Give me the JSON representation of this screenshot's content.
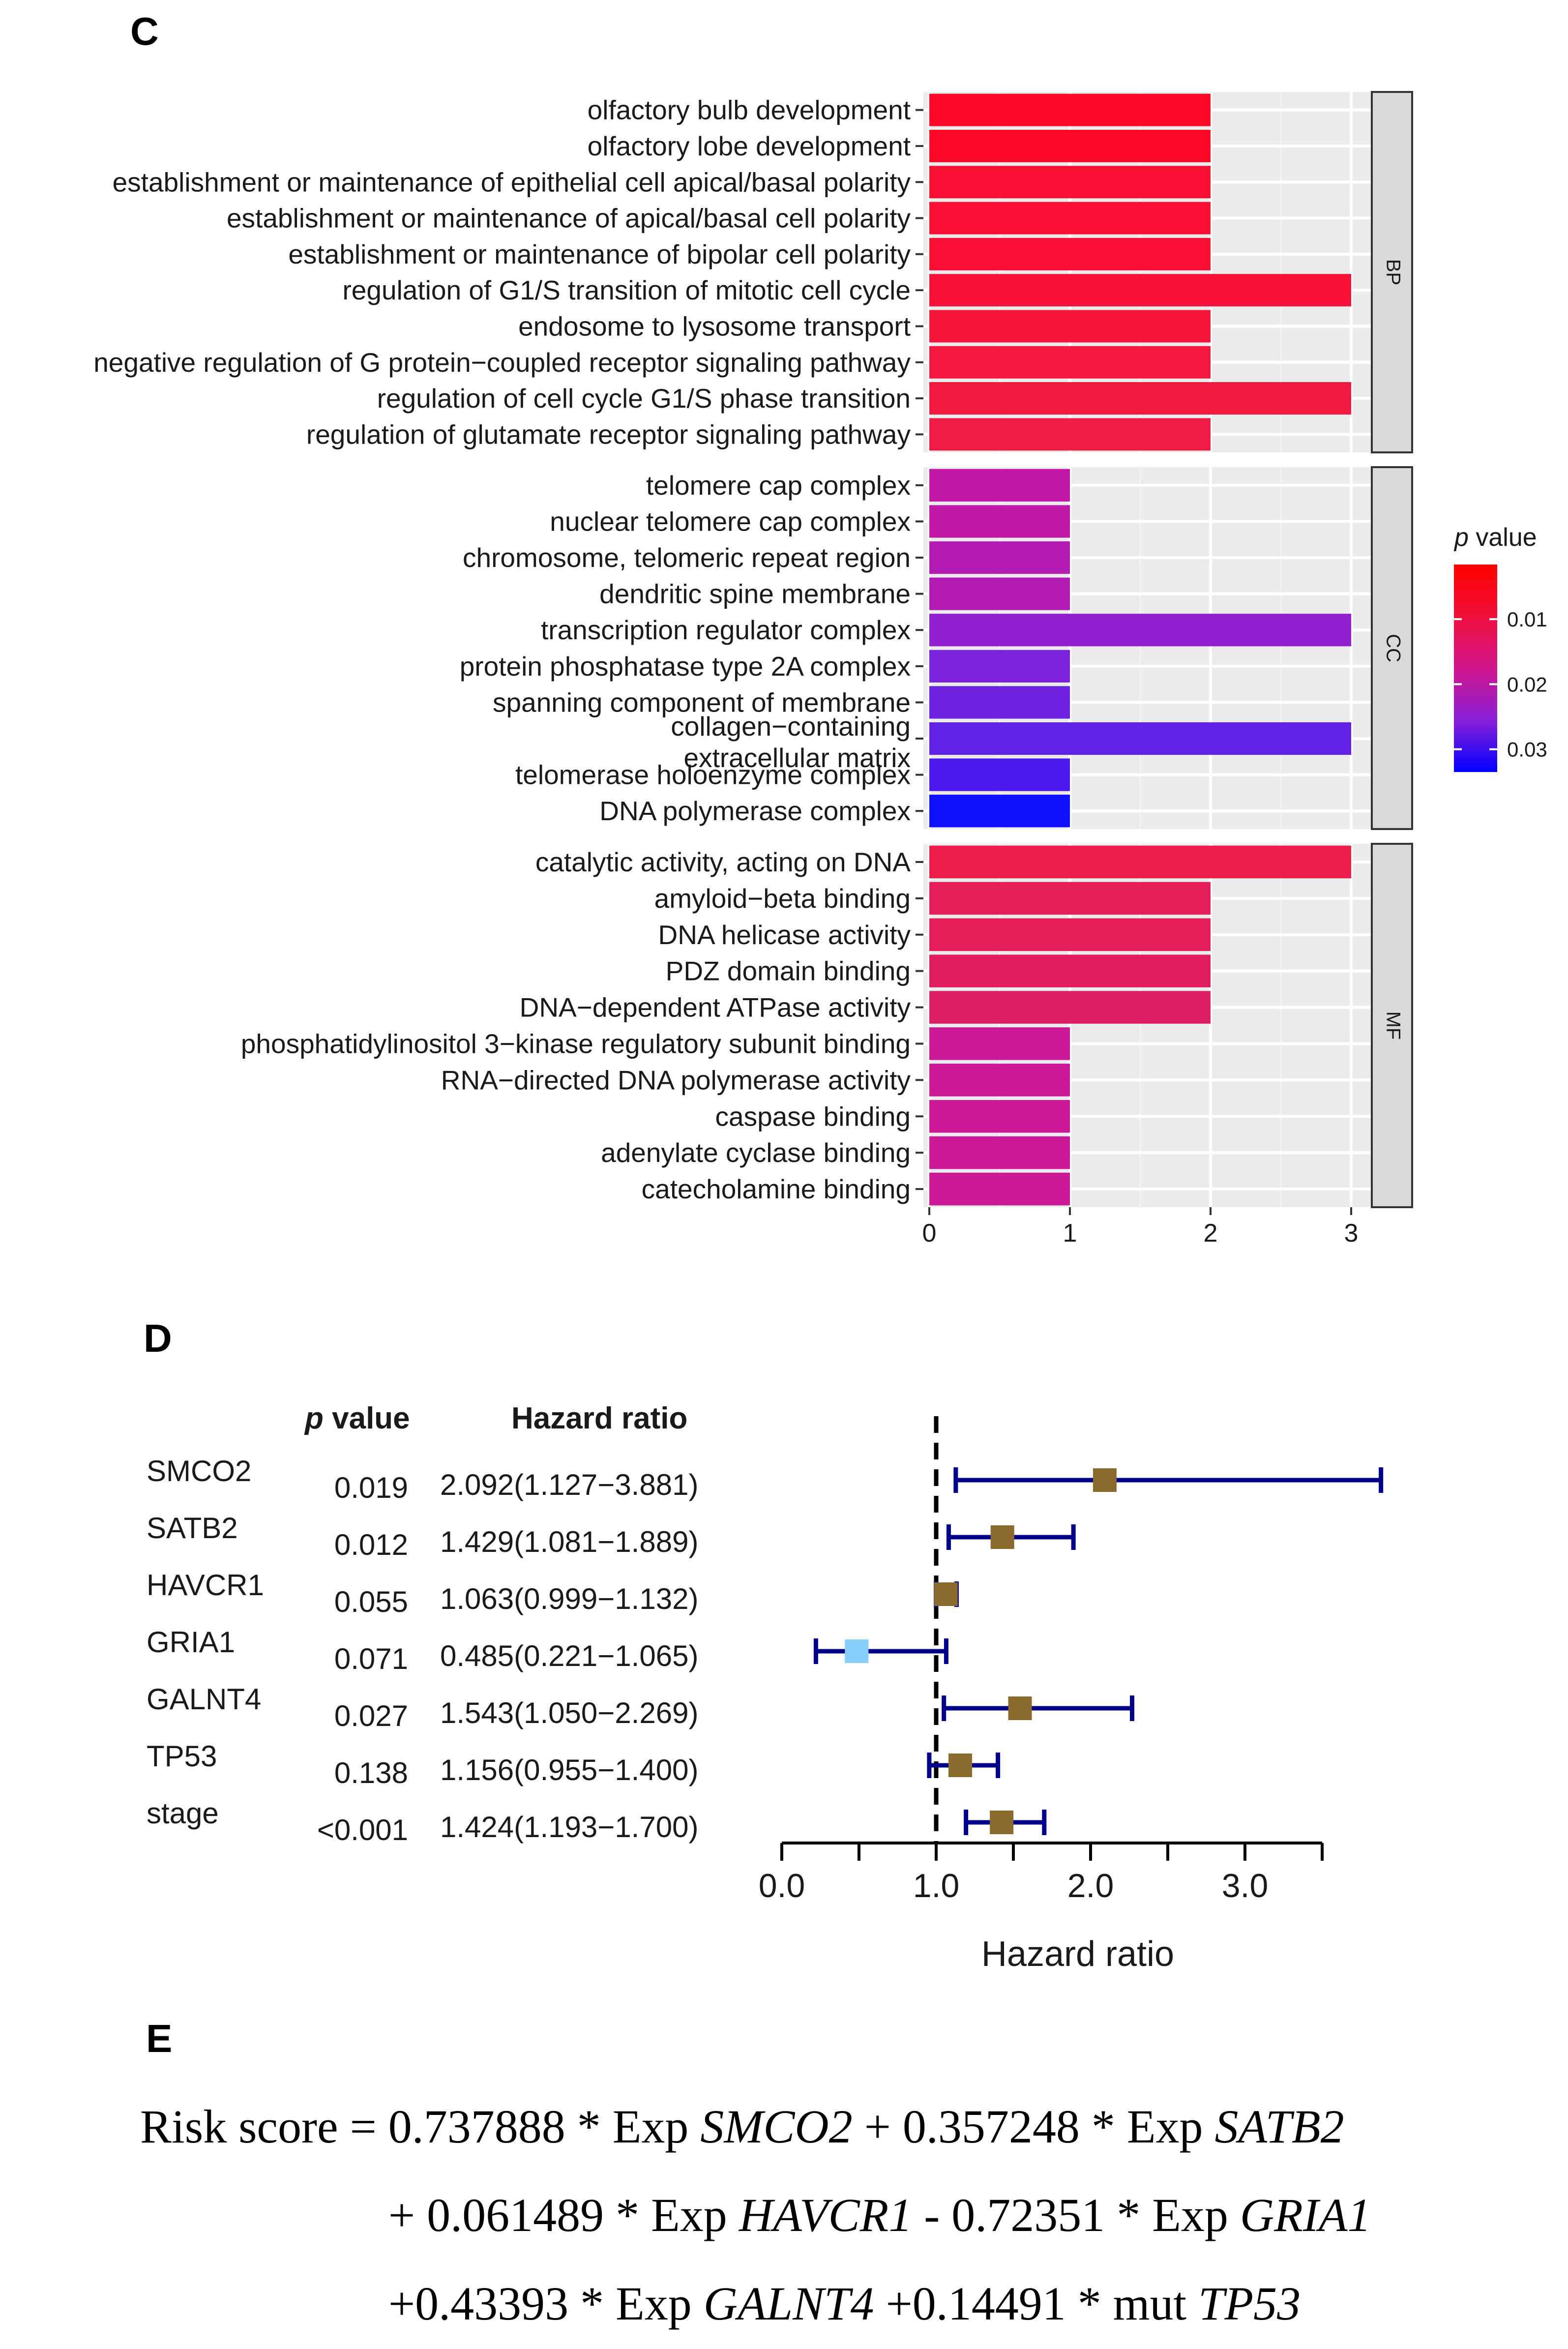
{
  "panel_labels": {
    "c": "C",
    "d": "D",
    "e": "E"
  },
  "chart_data": [
    {
      "type": "bar",
      "orientation": "horizontal",
      "title": "",
      "xlabel": "",
      "ylabel": "",
      "xlim": [
        0,
        3
      ],
      "x_ticks": [
        "0",
        "1",
        "2",
        "3"
      ],
      "grid": true,
      "legend": {
        "title_italic": "p",
        "title_rest": " value",
        "ticks": [
          "0.01",
          "0.02",
          "0.03"
        ],
        "tick_values": [
          0.01,
          0.02,
          0.03
        ],
        "range": [
          0.0016,
          0.0335
        ],
        "colors": [
          "#ff0000",
          "#dc143c",
          "#c71585",
          "#8a2be2",
          "#0000ff"
        ],
        "placement": "right"
      },
      "facets": [
        {
          "name": "BP",
          "terms": [
            {
              "label": "olfactory bulb development",
              "value": 2,
              "p": 0.0027,
              "color": "#ff0828"
            },
            {
              "label": "olfactory lobe development",
              "value": 2,
              "p": 0.0027,
              "color": "#ff0828"
            },
            {
              "label": "establishment or maintenance of epithelial cell apical/basal polarity",
              "value": 2,
              "p": 0.0048,
              "color": "#fa1035"
            },
            {
              "label": "establishment or maintenance of apical/basal cell polarity",
              "value": 2,
              "p": 0.0048,
              "color": "#fa1035"
            },
            {
              "label": "establishment or maintenance of bipolar cell polarity",
              "value": 2,
              "p": 0.0048,
              "color": "#fa1035"
            },
            {
              "label": "regulation of G1/S transition of mitotic cell cycle",
              "value": 3,
              "p": 0.0052,
              "color": "#f81238"
            },
            {
              "label": "endosome to lysosome transport",
              "value": 2,
              "p": 0.0058,
              "color": "#f6153b"
            },
            {
              "label": "negative regulation of G protein−coupled receptor signaling pathway",
              "value": 2,
              "p": 0.0063,
              "color": "#f4173e"
            },
            {
              "label": "regulation of cell cycle G1/S phase transition",
              "value": 3,
              "p": 0.0066,
              "color": "#f21940"
            },
            {
              "label": "regulation of glutamate receptor signaling pathway",
              "value": 2,
              "p": 0.0072,
              "color": "#ef1c45"
            }
          ]
        },
        {
          "name": "CC",
          "terms": [
            {
              "label": "telomere cap complex",
              "value": 1,
              "p": 0.019,
              "color": "#c218a6"
            },
            {
              "label": "nuclear telomere cap complex",
              "value": 1,
              "p": 0.019,
              "color": "#c218a6"
            },
            {
              "label": "chromosome, telomeric repeat region",
              "value": 1,
              "p": 0.02,
              "color": "#b41cb5"
            },
            {
              "label": "dendritic spine membrane",
              "value": 1,
              "p": 0.02,
              "color": "#b41cb5"
            },
            {
              "label": "transcription regulator complex",
              "value": 3,
              "p": 0.023,
              "color": "#9020d0"
            },
            {
              "label": "protein phosphatase type 2A complex",
              "value": 1,
              "p": 0.025,
              "color": "#7a22dc"
            },
            {
              "label": "spanning component of membrane",
              "value": 1,
              "p": 0.026,
              "color": "#6e22e2"
            },
            {
              "label": "collagen−containing extracellular matrix",
              "label_lines": [
                "collagen−containing",
                "extracellular matrix"
              ],
              "value": 3,
              "p": 0.027,
              "color": "#6222e6"
            },
            {
              "label": "telomerase holoenzyme complex",
              "value": 1,
              "p": 0.029,
              "color": "#4a1aee"
            },
            {
              "label": "DNA polymerase complex",
              "value": 1,
              "p": 0.0335,
              "color": "#1010fa"
            }
          ]
        },
        {
          "name": "MF",
          "terms": [
            {
              "label": "catalytic activity, acting on DNA",
              "value": 3,
              "p": 0.0078,
              "color": "#ec1d4b"
            },
            {
              "label": "amyloid−beta binding",
              "value": 2,
              "p": 0.009,
              "color": "#e41e58"
            },
            {
              "label": "DNA helicase activity",
              "value": 2,
              "p": 0.009,
              "color": "#e41e58"
            },
            {
              "label": "PDZ domain binding",
              "value": 2,
              "p": 0.0095,
              "color": "#e01e5e"
            },
            {
              "label": "DNA−dependent ATPase activity",
              "value": 2,
              "p": 0.01,
              "color": "#dc1e64"
            },
            {
              "label": "phosphatidylinositol 3−kinase regulatory subunit binding",
              "value": 1,
              "p": 0.015,
              "color": "#cc1a96"
            },
            {
              "label": "RNA−directed DNA polymerase activity",
              "value": 1,
              "p": 0.015,
              "color": "#cc1a96"
            },
            {
              "label": "caspase binding",
              "value": 1,
              "p": 0.015,
              "color": "#cc1a96"
            },
            {
              "label": "adenylate cyclase binding",
              "value": 1,
              "p": 0.015,
              "color": "#cc1a96"
            },
            {
              "label": "catecholamine binding",
              "value": 1,
              "p": 0.015,
              "color": "#cc1a96"
            }
          ]
        }
      ]
    },
    {
      "type": "forest",
      "title": "",
      "xlabel": "Hazard ratio",
      "xlim": [
        0,
        3.5
      ],
      "x_ticks": [
        0.0,
        1.0,
        2.0,
        3.0
      ],
      "x_tick_labels": [
        "0.0",
        "1.0",
        "2.0",
        "3.0"
      ],
      "reference_line": 1.0,
      "column_headers": {
        "p_italic": "p",
        "p_rest": " value",
        "hr": "Hazard ratio"
      },
      "line_color": "#00008b",
      "rows": [
        {
          "variable": "SMCO2",
          "p": "0.019",
          "hr_text": "2.092(1.127−3.881)",
          "hr": 2.092,
          "lo": 1.127,
          "hi": 3.881,
          "color": "#8b6a2e"
        },
        {
          "variable": "SATB2",
          "p": "0.012",
          "hr_text": "1.429(1.081−1.889)",
          "hr": 1.429,
          "lo": 1.081,
          "hi": 1.889,
          "color": "#8b6a2e"
        },
        {
          "variable": "HAVCR1",
          "p": "0.055",
          "hr_text": "1.063(0.999−1.132)",
          "hr": 1.063,
          "lo": 0.999,
          "hi": 1.132,
          "color": "#8b6a2e"
        },
        {
          "variable": "GRIA1",
          "p": "0.071",
          "hr_text": "0.485(0.221−1.065)",
          "hr": 0.485,
          "lo": 0.221,
          "hi": 1.065,
          "color": "#87cefa"
        },
        {
          "variable": "GALNT4",
          "p": "0.027",
          "hr_text": "1.543(1.050−2.269)",
          "hr": 1.543,
          "lo": 1.05,
          "hi": 2.269,
          "color": "#8b6a2e"
        },
        {
          "variable": "TP53",
          "p": "0.138",
          "hr_text": "1.156(0.955−1.400)",
          "hr": 1.156,
          "lo": 0.955,
          "hi": 1.4,
          "color": "#8b6a2e"
        },
        {
          "variable": "stage",
          "p": "<0.001",
          "hr_text": "1.424(1.193−1.700)",
          "hr": 1.424,
          "lo": 1.193,
          "hi": 1.7,
          "color": "#8b6a2e"
        }
      ]
    }
  ],
  "formula": {
    "lead": "Risk score = 0.737888 * Exp ",
    "g1": "SMCO2",
    "t1": " + 0.357248 * Exp ",
    "g2": "SATB2",
    "t2": "+ 0.061489 * Exp ",
    "g3": "HAVCR1",
    "t3": " - 0.72351 * Exp ",
    "g4": "GRIA1",
    "t4": "+0.43393 * Exp ",
    "g5": "GALNT4",
    "t5": " +0.14491 * mut ",
    "g6": "TP53"
  }
}
